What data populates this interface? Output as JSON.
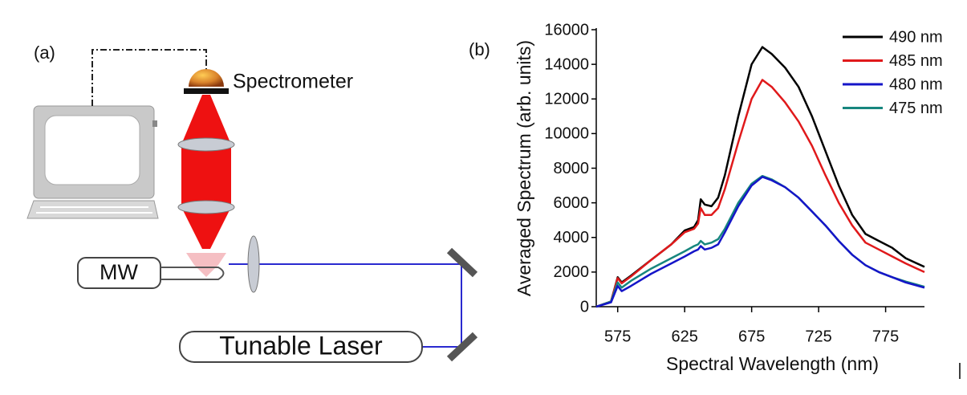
{
  "diagram": {
    "panel_label": "(a)",
    "spectrometer": "Spectrometer",
    "mw": "MW",
    "laser": "Tunable Laser"
  },
  "chart_data": {
    "type": "line",
    "panel_label": "(b)",
    "x_label": "Spectral Wavelength (nm)",
    "y_label": "Averaged Spectrum (arb. units)",
    "xlim": [
      559,
      804
    ],
    "ylim": [
      0,
      16000
    ],
    "xticks": [
      575,
      625,
      675,
      725,
      775
    ],
    "yticks": [
      0,
      2000,
      4000,
      6000,
      8000,
      10000,
      12000,
      14000,
      16000
    ],
    "legend": "upper right",
    "x": [
      559,
      570,
      575,
      578,
      585,
      600,
      615,
      625,
      632,
      635,
      637,
      640,
      645,
      650,
      655,
      665,
      675,
      683,
      690,
      700,
      710,
      720,
      730,
      740,
      750,
      760,
      770,
      780,
      790,
      804
    ],
    "series": [
      {
        "name": "490 nm",
        "color": "#000000",
        "values": [
          0,
          300,
          1700,
          1400,
          1800,
          2700,
          3600,
          4400,
          4600,
          5000,
          6200,
          5900,
          5800,
          6300,
          7600,
          11000,
          14000,
          15000,
          14600,
          13800,
          12700,
          11000,
          9000,
          7000,
          5300,
          4200,
          3800,
          3400,
          2800,
          2300
        ]
      },
      {
        "name": "485 nm",
        "color": "#e0191b",
        "values": [
          0,
          300,
          1650,
          1350,
          1750,
          2700,
          3600,
          4300,
          4500,
          4800,
          5700,
          5300,
          5300,
          5700,
          6800,
          9500,
          12000,
          13100,
          12700,
          11800,
          10700,
          9300,
          7600,
          6000,
          4700,
          3700,
          3300,
          2900,
          2500,
          2000
        ]
      },
      {
        "name": "480 nm",
        "color": "#1515c8",
        "values": [
          0,
          250,
          1200,
          900,
          1200,
          1900,
          2500,
          2900,
          3200,
          3300,
          3500,
          3300,
          3400,
          3600,
          4300,
          5800,
          7000,
          7500,
          7300,
          6900,
          6300,
          5500,
          4700,
          3800,
          3000,
          2400,
          2000,
          1700,
          1400,
          1100
        ]
      },
      {
        "name": "475 nm",
        "color": "#17867e",
        "values": [
          0,
          300,
          1400,
          1100,
          1500,
          2200,
          2800,
          3200,
          3500,
          3600,
          3800,
          3600,
          3700,
          3900,
          4500,
          6000,
          7100,
          7550,
          7350,
          6900,
          6300,
          5500,
          4700,
          3800,
          3000,
          2400,
          2000,
          1700,
          1450,
          1150
        ]
      }
    ]
  }
}
